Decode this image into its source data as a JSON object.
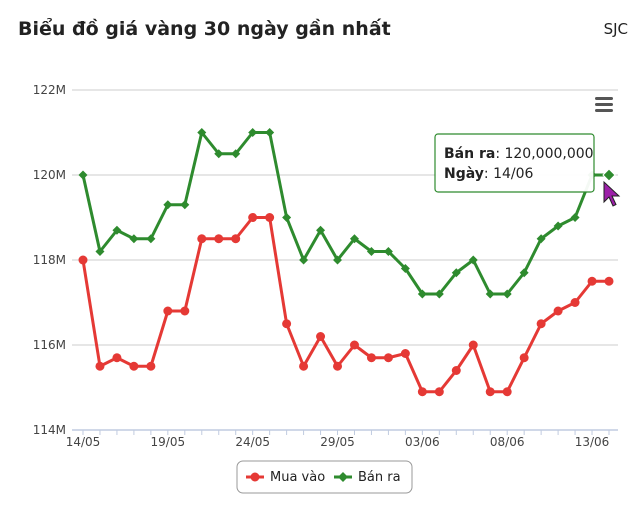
{
  "header": {
    "title": "Biểu đồ giá vàng 30 ngày gần nhất",
    "brand": "SJC"
  },
  "menu": {
    "icon": "hamburger-menu-icon"
  },
  "tooltip": {
    "label1": "Bán ra",
    "value1": "120,000,000",
    "label2": "Ngày",
    "value2": "14/06",
    "series_index": 1,
    "point_index": 31
  },
  "chart_data": {
    "type": "line",
    "title": "Biểu đồ giá vàng 30 ngày gần nhất",
    "xlabel": "",
    "ylabel": "",
    "x_ticks": [
      "14/05",
      "19/05",
      "24/05",
      "29/05",
      "03/06",
      "08/06",
      "13/06"
    ],
    "x_tick_index": [
      0,
      5,
      10,
      15,
      20,
      25,
      30
    ],
    "y_ticks": [
      "114M",
      "116M",
      "118M",
      "120M",
      "122M"
    ],
    "ylim": [
      114,
      122
    ],
    "y_unit": "million VND",
    "grid": true,
    "legend_position": "bottom",
    "colors": {
      "buy": "#e53935",
      "sell": "#2e8b2e",
      "axis": "#c0cbe0",
      "grid": "#cccccc"
    },
    "series": [
      {
        "name": "Mua vào",
        "marker": "circle",
        "values": [
          118,
          115.5,
          115.7,
          115.5,
          115.5,
          116.8,
          116.8,
          118.5,
          118.5,
          118.5,
          119,
          119,
          116.5,
          115.5,
          116.2,
          115.5,
          116,
          115.7,
          115.7,
          115.8,
          114.9,
          114.9,
          115.4,
          116,
          114.9,
          114.9,
          115.7,
          116.5,
          116.8,
          117,
          117.5,
          117.5
        ]
      },
      {
        "name": "Bán ra",
        "marker": "diamond",
        "values": [
          120,
          118.2,
          118.7,
          118.5,
          118.5,
          119.3,
          119.3,
          121,
          120.5,
          120.5,
          121,
          121,
          119,
          118,
          118.7,
          118,
          118.5,
          118.2,
          118.2,
          117.8,
          117.2,
          117.2,
          117.7,
          118,
          117.2,
          117.2,
          117.7,
          118.5,
          118.8,
          119,
          120,
          120
        ]
      }
    ]
  }
}
